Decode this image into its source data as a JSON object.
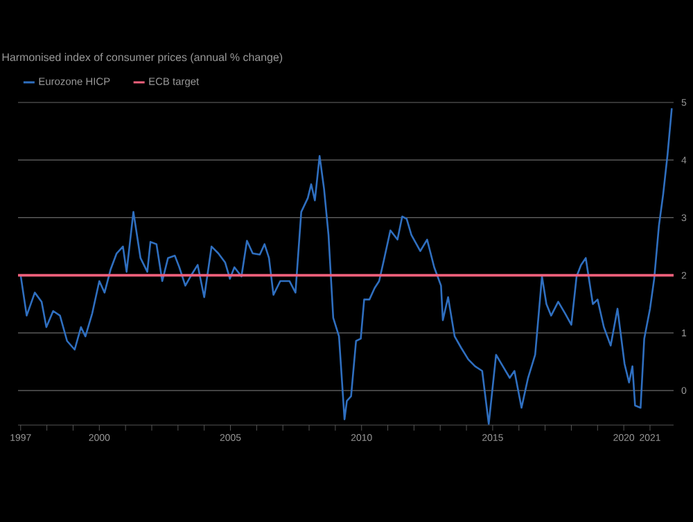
{
  "chart_data": {
    "type": "line",
    "title": "Harmonised index of consumer prices (annual % change)",
    "series": [
      {
        "name": "Eurozone HICP",
        "color": "#2f6fc0",
        "x": [
          1997.0,
          1997.23,
          1997.54,
          1997.8,
          1997.98,
          1998.24,
          1998.5,
          1998.77,
          1999.06,
          1999.3,
          1999.47,
          1999.73,
          2000.0,
          2000.2,
          2000.43,
          2000.66,
          2000.9,
          2001.04,
          2001.3,
          2001.57,
          2001.83,
          2001.95,
          2002.18,
          2002.4,
          2002.62,
          2002.88,
          2003.05,
          2003.28,
          2003.53,
          2003.75,
          2004.0,
          2004.28,
          2004.54,
          2004.8,
          2004.98,
          2005.15,
          2005.42,
          2005.63,
          2005.85,
          2006.12,
          2006.3,
          2006.47,
          2006.64,
          2006.9,
          2007.25,
          2007.48,
          2007.7,
          2007.95,
          2008.08,
          2008.22,
          2008.4,
          2008.57,
          2008.74,
          2008.92,
          2009.14,
          2009.35,
          2009.44,
          2009.6,
          2009.79,
          2009.97,
          2010.1,
          2010.3,
          2010.5,
          2010.67,
          2010.85,
          2011.1,
          2011.37,
          2011.55,
          2011.72,
          2011.9,
          2012.24,
          2012.5,
          2012.77,
          2013.03,
          2013.1,
          2013.3,
          2013.55,
          2013.8,
          2014.07,
          2014.33,
          2014.6,
          2014.85,
          2015.13,
          2015.39,
          2015.65,
          2015.83,
          2016.1,
          2016.35,
          2016.62,
          2016.88,
          2017.05,
          2017.23,
          2017.5,
          2017.76,
          2018.0,
          2018.2,
          2018.37,
          2018.55,
          2018.82,
          2019.0,
          2019.24,
          2019.5,
          2019.76,
          2020.03,
          2020.2,
          2020.33,
          2020.43,
          2020.64,
          2020.78,
          2021.0,
          2021.16,
          2021.34,
          2021.5,
          2021.67,
          2021.83
        ],
        "values": [
          2.0,
          1.3,
          1.7,
          1.54,
          1.1,
          1.38,
          1.3,
          0.86,
          0.71,
          1.1,
          0.94,
          1.34,
          1.9,
          1.7,
          2.1,
          2.38,
          2.5,
          2.06,
          3.1,
          2.3,
          2.06,
          2.58,
          2.54,
          1.9,
          2.3,
          2.34,
          2.14,
          1.82,
          2.02,
          2.18,
          1.62,
          2.5,
          2.38,
          2.22,
          1.94,
          2.14,
          1.98,
          2.6,
          2.38,
          2.36,
          2.54,
          2.3,
          1.66,
          1.9,
          1.9,
          1.7,
          3.1,
          3.34,
          3.58,
          3.3,
          4.07,
          3.5,
          2.7,
          1.26,
          0.94,
          -0.5,
          -0.18,
          -0.1,
          0.86,
          0.9,
          1.58,
          1.58,
          1.78,
          1.9,
          2.26,
          2.78,
          2.62,
          3.02,
          2.98,
          2.7,
          2.42,
          2.62,
          2.14,
          1.82,
          1.22,
          1.62,
          0.94,
          0.74,
          0.54,
          0.42,
          0.34,
          -0.58,
          0.62,
          0.42,
          0.22,
          0.34,
          -0.3,
          0.22,
          0.62,
          1.98,
          1.5,
          1.3,
          1.54,
          1.34,
          1.14,
          1.98,
          2.18,
          2.3,
          1.5,
          1.58,
          1.1,
          0.78,
          1.42,
          0.46,
          0.14,
          0.42,
          -0.26,
          -0.3,
          0.9,
          1.42,
          1.94,
          2.86,
          3.4,
          4.1,
          4.9
        ]
      }
    ],
    "ref_lines": [
      {
        "axis": "y",
        "value": 2,
        "label": "ECB target",
        "color": "#f0607c"
      }
    ],
    "xlim": [
      1996.9,
      2021.9
    ],
    "ylim": [
      -0.6,
      5
    ],
    "xticks": [
      1997,
      {
        "value": 1998,
        "label": null
      },
      {
        "value": 1999,
        "label": null
      },
      2000,
      {
        "value": 2001,
        "label": null
      },
      {
        "value": 2002,
        "label": null
      },
      {
        "value": 2003,
        "label": null
      },
      {
        "value": 2004,
        "label": null
      },
      2005,
      {
        "value": 2006,
        "label": null
      },
      {
        "value": 2007,
        "label": null
      },
      {
        "value": 2008,
        "label": null
      },
      {
        "value": 2009,
        "label": null
      },
      2010,
      {
        "value": 2011,
        "label": null
      },
      {
        "value": 2012,
        "label": null
      },
      {
        "value": 2013,
        "label": null
      },
      {
        "value": 2014,
        "label": null
      },
      2015,
      {
        "value": 2016,
        "label": null
      },
      {
        "value": 2017,
        "label": null
      },
      {
        "value": 2018,
        "label": null
      },
      {
        "value": 2019,
        "label": null
      },
      2020,
      2021
    ],
    "yticks": [
      0,
      1,
      2,
      3,
      4,
      5
    ],
    "grid": "y",
    "legend": "top left"
  }
}
